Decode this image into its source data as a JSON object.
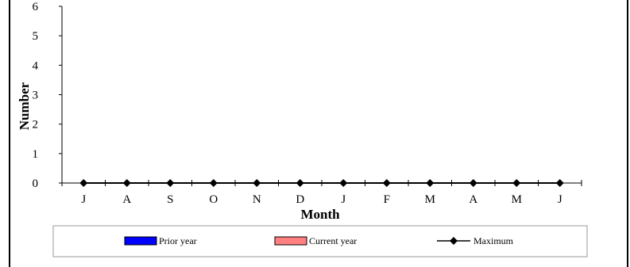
{
  "chart_data": {
    "type": "line",
    "xlabel": "Month",
    "ylabel": "Number",
    "ylim": [
      0,
      6
    ],
    "yticks": [
      0,
      1,
      2,
      3,
      4,
      5,
      6
    ],
    "categories": [
      "J",
      "A",
      "S",
      "O",
      "N",
      "D",
      "J",
      "F",
      "M",
      "A",
      "M",
      "J"
    ],
    "series": [
      {
        "name": "Prior year",
        "kind": "bar",
        "color": "#0000ff",
        "values": [
          0,
          0,
          0,
          0,
          0,
          0,
          0,
          0,
          0,
          0,
          0,
          0
        ]
      },
      {
        "name": "Current year",
        "kind": "bar",
        "color": "#ff8080",
        "values": [
          0,
          0,
          0,
          0,
          0,
          0,
          0,
          0,
          0,
          0,
          0,
          0
        ]
      },
      {
        "name": "Maximum",
        "kind": "line",
        "marker": "diamond",
        "color": "#000000",
        "values": [
          0,
          0,
          0,
          0,
          0,
          0,
          0,
          0,
          0,
          0,
          0,
          0
        ]
      }
    ],
    "legend_position": "bottom",
    "grid": false
  }
}
